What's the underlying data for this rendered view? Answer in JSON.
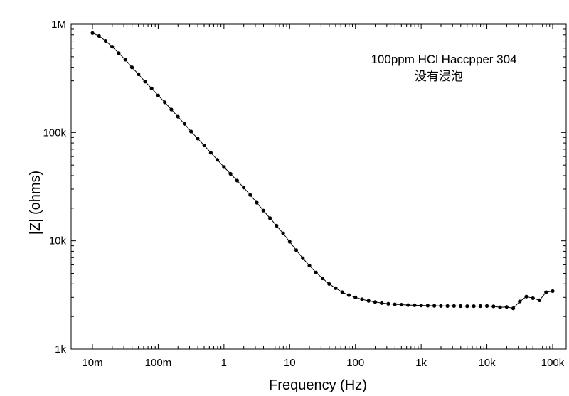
{
  "chart_data": {
    "type": "line",
    "xlabel": "Frequency (Hz)",
    "ylabel": "|Z| (ohms)",
    "xscale": "log",
    "yscale": "log",
    "xlim": [
      0.01,
      100000
    ],
    "ylim": [
      1000,
      1000000
    ],
    "x_ticks": [
      {
        "value": 0.01,
        "label": "10m"
      },
      {
        "value": 0.1,
        "label": "100m"
      },
      {
        "value": 1,
        "label": "1"
      },
      {
        "value": 10,
        "label": "10"
      },
      {
        "value": 100,
        "label": "100"
      },
      {
        "value": 1000,
        "label": "1k"
      },
      {
        "value": 10000,
        "label": "10k"
      },
      {
        "value": 100000,
        "label": "100k"
      }
    ],
    "y_ticks": [
      {
        "value": 1000,
        "label": "1k"
      },
      {
        "value": 10000,
        "label": "10k"
      },
      {
        "value": 100000,
        "label": "100k"
      },
      {
        "value": 1000000,
        "label": "1M"
      }
    ],
    "annotations": [
      "100ppm HCl Haccpper 304",
      "没有浸泡"
    ],
    "grid": false,
    "series": [
      {
        "marker": "filled-circle",
        "color": "#000000",
        "x": [
          0.01,
          0.01259,
          0.01585,
          0.01995,
          0.02512,
          0.03162,
          0.03981,
          0.05012,
          0.0631,
          0.07943,
          0.1,
          0.1259,
          0.1585,
          0.1995,
          0.2512,
          0.3162,
          0.3981,
          0.5012,
          0.631,
          0.7943,
          1,
          1.259,
          1.585,
          1.995,
          2.512,
          3.162,
          3.981,
          5.012,
          6.31,
          7.943,
          10,
          12.59,
          15.85,
          19.95,
          25.12,
          31.62,
          39.81,
          50.12,
          63.1,
          79.43,
          100,
          125.9,
          158.5,
          199.5,
          251.2,
          316.2,
          398.1,
          501.2,
          631,
          794.3,
          1000,
          1259,
          1585,
          1995,
          2512,
          3162,
          3981,
          5012,
          6310,
          7943,
          10000,
          12590,
          15850,
          19950,
          25120,
          31620,
          39810,
          50120,
          63100,
          79430,
          100000
        ],
        "y": [
          830000,
          780000,
          700000,
          620000,
          540000,
          470000,
          400000,
          345000,
          295000,
          255000,
          220000,
          190000,
          163000,
          140000,
          120000,
          102000,
          88000,
          76000,
          65000,
          56000,
          48000,
          41500,
          36000,
          31000,
          26500,
          22500,
          19000,
          16200,
          13800,
          11700,
          9800,
          8200,
          6900,
          5900,
          5100,
          4500,
          4000,
          3650,
          3350,
          3150,
          3000,
          2880,
          2790,
          2720,
          2660,
          2620,
          2590,
          2570,
          2550,
          2540,
          2530,
          2520,
          2510,
          2505,
          2500,
          2500,
          2495,
          2490,
          2490,
          2495,
          2500,
          2480,
          2430,
          2450,
          2380,
          2750,
          3050,
          2950,
          2820,
          3350,
          3430
        ]
      }
    ]
  }
}
